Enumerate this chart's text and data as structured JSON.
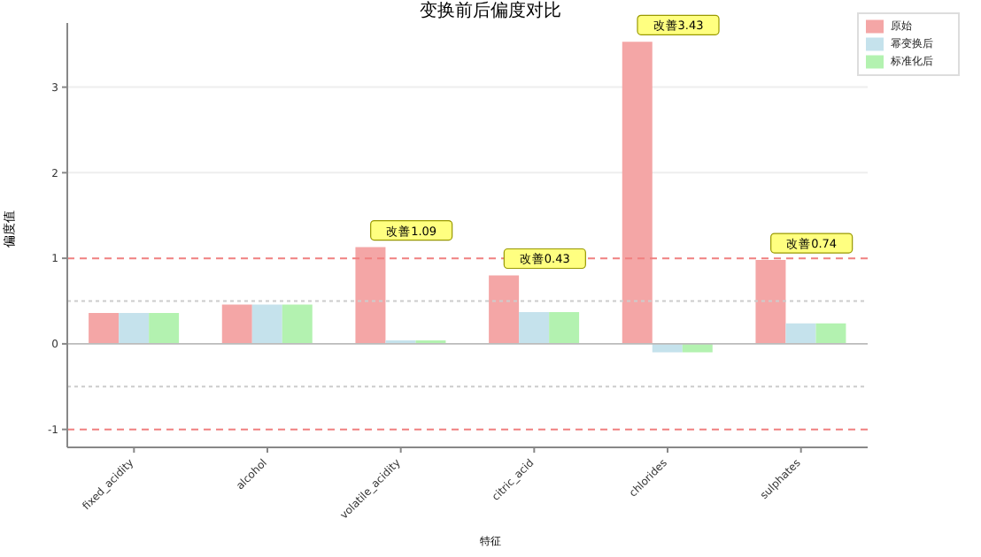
{
  "chart_data": {
    "type": "bar",
    "title": "变换前后偏度对比",
    "xlabel": "特征",
    "ylabel": "偏度值",
    "categories": [
      "fixed_acidity",
      "alcohol",
      "volatile_acidity",
      "citric_acid",
      "chlorides",
      "sulphates"
    ],
    "series": [
      {
        "name": "原始",
        "color": "#f4a6a6",
        "values": [
          0.36,
          0.46,
          1.13,
          0.8,
          3.53,
          0.98
        ]
      },
      {
        "name": "幂变换后",
        "color": "#c5e2ec",
        "values": [
          0.36,
          0.46,
          0.04,
          0.37,
          -0.1,
          0.24
        ]
      },
      {
        "name": "标准化后",
        "color": "#b3f2b0",
        "values": [
          0.36,
          0.46,
          0.04,
          0.37,
          -0.1,
          0.24
        ]
      }
    ],
    "ylim": [
      -1.21,
      3.75
    ],
    "yticks": [
      -1,
      0,
      1,
      2,
      3
    ],
    "grid": "y",
    "legend": "top right",
    "ref_lines": [
      {
        "axis": "y",
        "value": 0,
        "color": "#bbbbbb",
        "line_style": "solid"
      },
      {
        "axis": "y",
        "value": 0.5,
        "color": "#cccccc",
        "line_style": "dotted"
      },
      {
        "axis": "y",
        "value": -0.5,
        "color": "#cccccc",
        "line_style": "dotted"
      },
      {
        "axis": "y",
        "value": 1,
        "color": "#f08080",
        "line_style": "dashed"
      },
      {
        "axis": "y",
        "value": -1,
        "color": "#f08080",
        "line_style": "dashed"
      }
    ],
    "annotations": [
      {
        "text": "改善1.09",
        "x": "volatile_acidity",
        "y": 1.13
      },
      {
        "text": "改善0.43",
        "x": "citric_acid",
        "y": 0.8
      },
      {
        "text": "改善3.43",
        "x": "chlorides",
        "y": 3.53
      },
      {
        "text": "改善0.74",
        "x": "sulphates",
        "y": 0.98
      }
    ]
  }
}
